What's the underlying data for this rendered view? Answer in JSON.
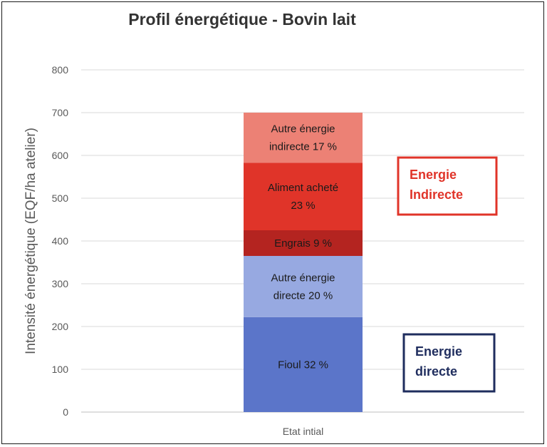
{
  "chart_data": {
    "type": "bar",
    "stacked": true,
    "title": "Profil énergétique - Bovin lait",
    "xlabel": "",
    "ylabel": "Intensité énergétique (EQF/ha atelier)",
    "ylim": [
      0,
      800
    ],
    "yticks": [
      0,
      100,
      200,
      300,
      400,
      500,
      600,
      700,
      800
    ],
    "grid": true,
    "categories": [
      "Etat intial"
    ],
    "series": [
      {
        "name": "Fioul",
        "values": [
          222
        ],
        "label_lines": [
          "Fioul 32 %"
        ],
        "color": "#5b75c9"
      },
      {
        "name": "Autre énergie directe",
        "values": [
          143
        ],
        "label_lines": [
          "Autre énergie",
          "directe 20 %"
        ],
        "color": "#97a9e1"
      },
      {
        "name": "Engrais",
        "values": [
          60
        ],
        "label_lines": [
          "Engrais 9 %"
        ],
        "color": "#b42420"
      },
      {
        "name": "Aliment acheté",
        "values": [
          158
        ],
        "label_lines": [
          "Aliment acheté",
          "23 %"
        ],
        "color": "#e03429"
      },
      {
        "name": "Autre énergie indirecte",
        "values": [
          117
        ],
        "label_lines": [
          "Autre énergie",
          "indirecte 17 %"
        ],
        "color": "#ec8175"
      }
    ],
    "annotations": [
      {
        "lines": [
          "Energie",
          "Indirecte"
        ],
        "color": "#e03429",
        "group": "indirect"
      },
      {
        "lines": [
          "Energie",
          "directe"
        ],
        "color": "#1f2d5e",
        "group": "direct"
      }
    ]
  }
}
